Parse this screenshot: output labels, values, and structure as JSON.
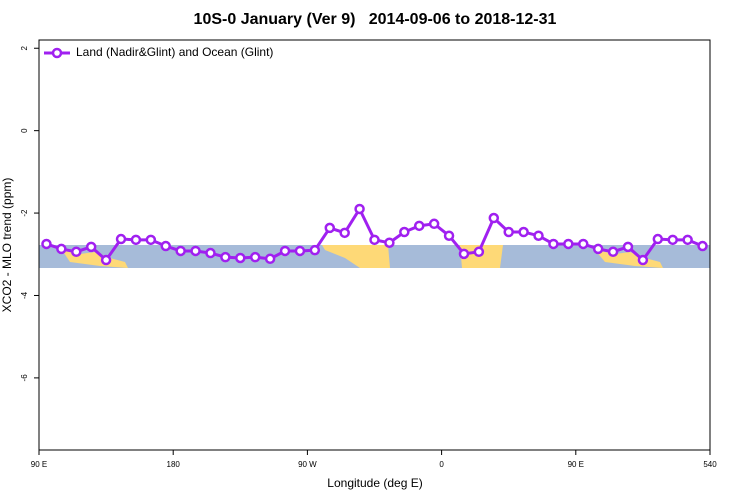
{
  "chart_data": {
    "type": "line",
    "title": "10S-0 January (Ver 9)   2014-09-06 to 2018-12-31",
    "x_label": "Longitude (deg E)",
    "y_label": "XCO2 - MLO trend (ppm)",
    "x": [
      95,
      105,
      115,
      125,
      135,
      145,
      155,
      165,
      175,
      185,
      195,
      205,
      215,
      225,
      235,
      245,
      255,
      265,
      275,
      285,
      295,
      305,
      315,
      325,
      335,
      345,
      355,
      365,
      375,
      385,
      395,
      405,
      415,
      425,
      435,
      445,
      455,
      465,
      475,
      485,
      495,
      505,
      515,
      525,
      535
    ],
    "series": [
      {
        "name": "Land (Nadir&Glint) and Ocean (Glint)",
        "color": "#a020f0",
        "values": [
          -2.75,
          -2.87,
          -2.94,
          -2.82,
          -3.14,
          -2.63,
          -2.65,
          -2.65,
          -2.8,
          -2.92,
          -2.92,
          -2.97,
          -3.07,
          -3.09,
          -3.07,
          -3.11,
          -2.92,
          -2.92,
          -2.9,
          -2.36,
          -2.48,
          -1.9,
          -2.65,
          -2.72,
          -2.46,
          -2.31,
          -2.26,
          -2.55,
          -2.99,
          -2.94,
          -2.12,
          -2.46,
          -2.46,
          -2.55,
          -2.75,
          -2.75,
          -2.75,
          -2.87,
          -2.94,
          -2.82,
          -3.14,
          -2.63,
          -2.65,
          -2.65,
          -2.8
        ]
      }
    ],
    "xlim": [
      90,
      540
    ],
    "xticks": [
      {
        "value": 90,
        "label": "90 E"
      },
      180,
      {
        "value": 270,
        "label": "90 W"
      },
      {
        "value": 360,
        "label": "0"
      },
      {
        "value": 450,
        "label": "90 E"
      },
      540
    ],
    "ylim": [
      -7.75,
      2.2
    ],
    "yticks": [
      2,
      0,
      -2,
      -4,
      -6
    ],
    "legend": "top-left"
  }
}
